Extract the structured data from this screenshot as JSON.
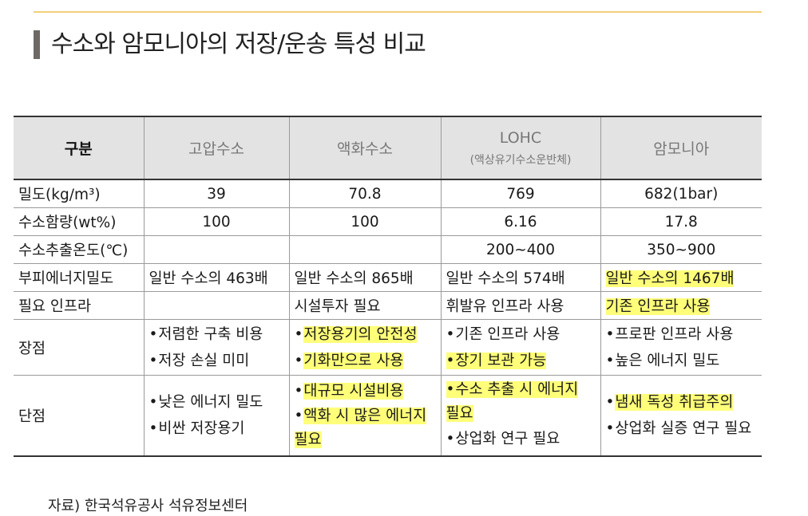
{
  "title": "수소와 암모니아의 저장/운송 특성 비교",
  "table": {
    "header": {
      "category": "구분",
      "cols": [
        {
          "label": "고압수소",
          "sub": ""
        },
        {
          "label": "액화수소",
          "sub": ""
        },
        {
          "label": "LOHC",
          "sub": "(액상유기수소운반체)"
        },
        {
          "label": "암모니아",
          "sub": ""
        }
      ]
    },
    "rows": {
      "density": {
        "label": "밀도(kg/m³)",
        "values": [
          "39",
          "70.8",
          "769",
          "682(1bar)"
        ]
      },
      "h2_content": {
        "label": "수소함량(wt%)",
        "values": [
          "100",
          "100",
          "6.16",
          "17.8"
        ]
      },
      "extract_temp": {
        "label": "수소추출온도(℃)",
        "values": [
          "",
          "",
          "200~400",
          "350~900"
        ]
      },
      "vol_energy": {
        "label": "부피에너지밀도",
        "values": [
          "일반 수소의 463배",
          "일반 수소의 865배",
          "일반 수소의 574배",
          "일반 수소의 1467배"
        ]
      },
      "infra": {
        "label": "필요 인프라",
        "values": [
          "",
          "시설투자 필요",
          "휘발유 인프라 사용",
          "기존 인프라 사용"
        ]
      },
      "pros": {
        "label": "장점",
        "cols": [
          [
            "저렴한 구축 비용",
            "저장 손실 미미"
          ],
          [
            "저장용기의 안전성",
            "기화만으로 사용"
          ],
          [
            "기존 인프라 사용",
            "장기 보관 가능"
          ],
          [
            "프로판 인프라 사용",
            "높은 에너지 밀도"
          ]
        ]
      },
      "cons": {
        "label": "단점",
        "cols": [
          [
            "낮은 에너지 밀도",
            "비싼 저장용기"
          ],
          [
            "대규모 시설비용",
            "액화 시 많은 에너지 필요"
          ],
          [
            "수소 추출 시 에너지 필요",
            "상업화 연구 필요"
          ],
          [
            "냄새 독성 취급주의",
            "상업화 실증 연구 필요"
          ]
        ]
      }
    }
  },
  "bullet": "•",
  "source": "자료) 한국석유공사 석유정보센터",
  "colors": {
    "highlight": "#ffff7a",
    "header_bg": "#e3e3e3",
    "top_rule": "#f3cf7a",
    "title_bar": "#6d6a66"
  }
}
